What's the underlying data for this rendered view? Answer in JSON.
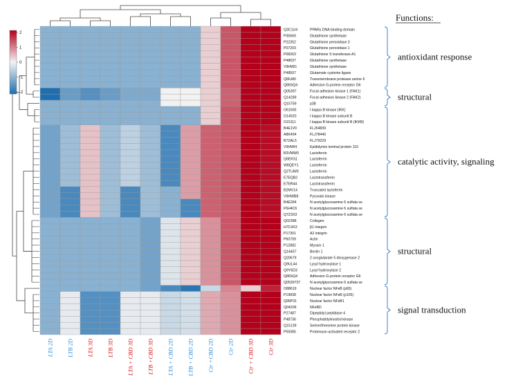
{
  "chart_data": {
    "type": "heatmap",
    "functions_title": "Functions:",
    "color_scale": {
      "min": -2,
      "max": 2,
      "ticks": [
        "2",
        "1",
        "0",
        "-1",
        "-2"
      ],
      "low_color": "#1f6fb0",
      "mid_color": "#f2f2f2",
      "high_color": "#b3001b"
    },
    "columns": [
      {
        "label": "LTA 2D",
        "color": "#2f8fd8"
      },
      {
        "label": "LTB 2D",
        "color": "#2f8fd8"
      },
      {
        "label": "LTA 3D",
        "color": "#d8161d"
      },
      {
        "label": "LTB 3D",
        "color": "#d8161d"
      },
      {
        "label": "LTA + CBD 3D",
        "color": "#d8161d"
      },
      {
        "label": "LTB +CBD 3D",
        "color": "#d8161d"
      },
      {
        "label": "LTA + CBD 2D",
        "color": "#2f8fd8"
      },
      {
        "label": "LTB + CBD 2D",
        "color": "#2f8fd8"
      },
      {
        "label": "Ctr +CBD 2D",
        "color": "#2f8fd8"
      },
      {
        "label": "Ctr 2D",
        "color": "#2f8fd8"
      },
      {
        "label": "Ctr + CBD 3D",
        "color": "#d8161d"
      },
      {
        "label": "Ctr 3D",
        "color": "#d8161d"
      }
    ],
    "rows": [
      {
        "id": "Q3C1U4",
        "name": "PPARγ DNA binding  domain",
        "values": [
          -1.0,
          -1.0,
          -1.0,
          -1.0,
          -1.0,
          -1.0,
          -1.0,
          -1.0,
          0.3,
          1.3,
          2.0,
          2.0
        ]
      },
      {
        "id": "P35669",
        "name": "Glutathione synthetase",
        "values": [
          -1.0,
          -1.0,
          -1.0,
          -1.0,
          -1.0,
          -1.0,
          -1.0,
          -1.0,
          0.3,
          1.3,
          2.0,
          2.0
        ]
      },
      {
        "id": "P22352",
        "name": "Glutathione peroxidase  3",
        "values": [
          -1.0,
          -1.0,
          -1.0,
          -1.0,
          -1.0,
          -1.0,
          -1.0,
          -1.0,
          0.3,
          1.3,
          2.0,
          2.0
        ]
      },
      {
        "id": "P07203",
        "name": "Glutathione peroxidase  1",
        "values": [
          -1.0,
          -1.0,
          -1.0,
          -1.0,
          -1.0,
          -1.0,
          -1.0,
          -1.0,
          0.3,
          1.3,
          2.0,
          2.0
        ]
      },
      {
        "id": "P08263",
        "name": "Glutathione S transferase  A1",
        "values": [
          -1.0,
          -1.0,
          -1.0,
          -1.0,
          -1.0,
          -1.0,
          -1.0,
          -1.0,
          0.3,
          1.3,
          2.0,
          2.0
        ]
      },
      {
        "id": "P48637",
        "name": "Glutathione synthetase",
        "values": [
          -1.0,
          -1.0,
          -1.0,
          -1.0,
          -1.0,
          -1.0,
          -1.0,
          -1.0,
          0.3,
          1.3,
          2.0,
          2.0
        ]
      },
      {
        "id": "V9HWI1",
        "name": "Glutathione synthetase",
        "values": [
          -1.0,
          -1.0,
          -1.0,
          -1.0,
          -1.0,
          -1.0,
          -1.0,
          -1.0,
          0.3,
          1.3,
          2.0,
          2.0
        ]
      },
      {
        "id": "P48507",
        "name": "Glutamate cysteine  ligase",
        "values": [
          -1.0,
          -1.0,
          -1.0,
          -1.0,
          -1.0,
          -1.0,
          -1.0,
          -1.0,
          0.3,
          1.3,
          2.0,
          2.0
        ]
      },
      {
        "id": "Q8IU80",
        "name": "Transmembrane  protease serine 6",
        "values": [
          -1.0,
          -1.0,
          -1.0,
          -1.0,
          -1.0,
          -1.0,
          -1.0,
          -1.0,
          0.3,
          1.3,
          2.0,
          2.0
        ]
      },
      {
        "id": "Q86SQ4",
        "name": "Adhesion  G-protein receptor  G6",
        "values": [
          -1.0,
          -1.0,
          -1.0,
          -1.0,
          -1.0,
          -1.0,
          -1.0,
          -1.0,
          0.3,
          1.3,
          2.0,
          2.0
        ]
      },
      {
        "id": "Q05397",
        "name": "Focal adhesion kinase  1 (FAK1)",
        "values": [
          -2.0,
          -1.3,
          -1.5,
          -1.3,
          -1.1,
          -1.1,
          0.0,
          0.0,
          0.3,
          1.2,
          2.0,
          2.0
        ]
      },
      {
        "id": "Q14289",
        "name": "Focal adhesion kinase 2 (FAK2)",
        "values": [
          -2.0,
          -1.3,
          -1.5,
          -1.3,
          -1.1,
          -1.1,
          0.0,
          0.0,
          0.3,
          1.2,
          2.0,
          2.0
        ]
      },
      {
        "id": "Q15759",
        "name": "p38",
        "values": [
          -1.0,
          -1.0,
          -1.0,
          -1.0,
          -1.0,
          -1.0,
          0.0,
          0.0,
          0.3,
          1.2,
          2.0,
          2.0
        ]
      },
      {
        "id": "O61565",
        "name": "I kappa B  kinase  (IKK)",
        "values": [
          -1.0,
          -1.0,
          -1.0,
          -1.0,
          -1.0,
          -1.0,
          -1.0,
          -1.0,
          0.3,
          1.3,
          2.0,
          2.0
        ]
      },
      {
        "id": "O14920",
        "name": "I kappa B  kinase  subunit  B",
        "values": [
          -1.0,
          -1.0,
          -1.0,
          -1.0,
          -1.0,
          -1.0,
          -1.0,
          -1.0,
          0.3,
          1.3,
          2.0,
          2.0
        ]
      },
      {
        "id": "O15111",
        "name": "I kappa B  kinase  subunit  B (IKKB)",
        "values": [
          -1.0,
          -1.0,
          -1.0,
          -1.0,
          -1.0,
          -1.0,
          -1.0,
          -1.0,
          0.3,
          1.3,
          2.0,
          2.0
        ]
      },
      {
        "id": "B4E1V0",
        "name": "FLJ54839",
        "values": [
          -1.2,
          -0.8,
          0.4,
          -0.8,
          -0.5,
          -0.8,
          -1.6,
          0.7,
          1.2,
          1.3,
          2.2,
          1.9
        ]
      },
      {
        "id": "A8K494",
        "name": "FLJ78440",
        "values": [
          -1.2,
          -0.8,
          0.4,
          -0.8,
          -0.5,
          -0.8,
          -1.6,
          0.7,
          1.2,
          1.3,
          2.2,
          1.9
        ]
      },
      {
        "id": "B7ZAL5",
        "name": "FLJ79229",
        "values": [
          -1.2,
          -0.8,
          0.4,
          -0.8,
          -0.5,
          -0.8,
          -1.6,
          0.7,
          1.2,
          1.3,
          2.2,
          1.9
        ]
      },
      {
        "id": "V9HWI4",
        "name": "Epididymis  luminal protein 110",
        "values": [
          -1.2,
          -0.8,
          0.4,
          -0.8,
          -0.5,
          -0.8,
          -1.6,
          0.7,
          1.2,
          1.3,
          2.2,
          1.9
        ]
      },
      {
        "id": "B3VMW0",
        "name": "Lactoferrin",
        "values": [
          -1.2,
          -0.8,
          0.4,
          -0.8,
          -0.5,
          -0.8,
          -1.6,
          0.7,
          1.2,
          1.3,
          2.2,
          1.9
        ]
      },
      {
        "id": "Q6EKS1",
        "name": "Lactoferrin",
        "values": [
          -1.2,
          -0.8,
          0.4,
          -0.8,
          -0.5,
          -0.8,
          -1.6,
          0.7,
          1.2,
          1.3,
          2.2,
          1.9
        ]
      },
      {
        "id": "W8QEY1",
        "name": "Lactoferrin",
        "values": [
          -1.2,
          -0.8,
          0.4,
          -0.8,
          -0.5,
          -0.8,
          -1.6,
          0.7,
          1.2,
          1.3,
          2.2,
          1.9
        ]
      },
      {
        "id": "Q2TUW9",
        "name": "Lactoferrin",
        "values": [
          -1.2,
          -0.8,
          0.4,
          -0.8,
          -0.5,
          -0.8,
          -1.6,
          0.7,
          1.2,
          1.3,
          2.2,
          1.9
        ]
      },
      {
        "id": "E7EQB2",
        "name": "Lactotransferrin",
        "values": [
          -1.2,
          -0.8,
          0.4,
          -0.8,
          -0.5,
          -0.8,
          -1.6,
          0.7,
          1.2,
          1.3,
          2.2,
          1.9
        ]
      },
      {
        "id": "E7ER44",
        "name": "Lactotransferrin",
        "values": [
          -1.2,
          -0.8,
          0.4,
          -0.8,
          -0.5,
          -0.8,
          -1.6,
          0.7,
          1.2,
          1.3,
          2.2,
          1.9
        ]
      },
      {
        "id": "B2MV14",
        "name": "Truncated  lactoferrin",
        "values": [
          -1.2,
          -1.6,
          0.4,
          -0.8,
          -1.6,
          -0.8,
          -1.0,
          0.7,
          1.2,
          1.3,
          2.2,
          1.9
        ]
      },
      {
        "id": "V9HWB8",
        "name": "Pyruvate kinase",
        "values": [
          -1.2,
          -1.6,
          0.4,
          -0.8,
          -1.6,
          -0.8,
          -1.0,
          0.7,
          1.2,
          1.3,
          2.2,
          1.9
        ]
      },
      {
        "id": "B4E284",
        "name": "N acetylglucosamine 6 sulfata se",
        "values": [
          -1.2,
          -1.6,
          0.4,
          -0.8,
          -1.6,
          -0.8,
          -1.0,
          -1.6,
          1.2,
          1.3,
          2.2,
          1.9
        ]
      },
      {
        "id": "F5H4C6",
        "name": "N acetylglucosamine 6 sulfata se",
        "values": [
          -1.2,
          -1.6,
          0.4,
          -0.8,
          -1.6,
          -0.8,
          -1.0,
          -1.6,
          1.2,
          1.3,
          2.2,
          1.9
        ]
      },
      {
        "id": "Q7Z3X3",
        "name": "N acetylglucosamine 6 sulfata se",
        "values": [
          -1.2,
          -1.6,
          0.4,
          -0.8,
          -1.6,
          -0.8,
          -1.0,
          -1.6,
          1.2,
          1.3,
          2.2,
          1.9
        ]
      },
      {
        "id": "Q02388",
        "name": "Collagen",
        "values": [
          -1.0,
          -1.0,
          -1.0,
          -1.0,
          -1.0,
          -1.2,
          -0.2,
          0.3,
          0.8,
          1.3,
          2.6,
          2.0
        ]
      },
      {
        "id": "H7C4X3",
        "name": "β1 integrin",
        "values": [
          -1.0,
          -1.0,
          -1.0,
          -1.0,
          -1.0,
          -1.2,
          -0.2,
          0.3,
          0.8,
          1.3,
          2.6,
          2.0
        ]
      },
      {
        "id": "P17301",
        "name": "A2 integrin",
        "values": [
          -1.0,
          -1.0,
          -1.0,
          -1.0,
          -1.0,
          -1.2,
          -0.2,
          0.3,
          0.8,
          1.3,
          2.6,
          2.0
        ]
      },
      {
        "id": "P60709",
        "name": "Actin",
        "values": [
          -1.0,
          -1.0,
          -1.0,
          -1.0,
          -1.0,
          -1.2,
          -0.2,
          0.3,
          0.8,
          1.3,
          2.6,
          2.0
        ]
      },
      {
        "id": "P12882",
        "name": "Myosin 1",
        "values": [
          -1.0,
          -1.0,
          -1.0,
          -1.0,
          -1.0,
          -1.2,
          -0.2,
          0.3,
          0.8,
          1.3,
          2.6,
          2.0
        ]
      },
      {
        "id": "Q14457",
        "name": "Beclin 1",
        "values": [
          -1.0,
          -1.0,
          -1.0,
          -1.0,
          -1.0,
          -1.2,
          -0.2,
          0.3,
          0.8,
          1.3,
          2.6,
          2.0
        ]
      },
      {
        "id": "Q20679",
        "name": "2 oxoglutarate  5 dioxygenase  2",
        "values": [
          -1.0,
          -1.0,
          -1.0,
          -1.0,
          -1.0,
          -1.2,
          -0.2,
          0.3,
          0.8,
          1.3,
          2.6,
          2.0
        ]
      },
      {
        "id": "Q9UL44",
        "name": "Lysyl hydroxylase  1",
        "values": [
          -1.0,
          -1.0,
          -1.0,
          -1.0,
          -1.0,
          -1.2,
          -0.2,
          0.3,
          0.8,
          1.3,
          2.6,
          2.0
        ]
      },
      {
        "id": "Q9Y6D3",
        "name": "Lysyl hydroxylase  2",
        "values": [
          -1.0,
          -1.0,
          -1.0,
          -1.0,
          -1.0,
          -1.2,
          -0.2,
          0.3,
          0.8,
          1.3,
          2.6,
          2.0
        ]
      },
      {
        "id": "Q86SQ4",
        "name": "Adhesion  G-protein receptor  G6",
        "values": [
          -1.0,
          -1.0,
          -1.0,
          -1.0,
          -1.0,
          -1.2,
          -0.2,
          0.3,
          0.8,
          1.3,
          2.6,
          2.0
        ]
      },
      {
        "id": "Q0539737",
        "name": "N acetylglucosamine 6 sulfata se",
        "values": [
          -1.0,
          -1.0,
          -1.0,
          -1.0,
          -1.0,
          -1.2,
          -0.2,
          0.3,
          0.8,
          1.3,
          2.6,
          2.0
        ]
      },
      {
        "id": "O88619",
        "name": "Nuclear factor  NFκB (p65)",
        "values": [
          -1.0,
          -1.0,
          -1.0,
          -1.0,
          -1.0,
          -1.2,
          -1.6,
          -1.9,
          -0.4,
          0.9,
          0.3,
          1.7
        ]
      },
      {
        "id": "P19838",
        "name": "Nuclear factor  NFκB (p105)",
        "values": [
          -1.0,
          -0.1,
          -1.5,
          -1.5,
          -0.1,
          -0.1,
          -0.4,
          -0.3,
          0.6,
          0.8,
          2.2,
          2.0
        ]
      },
      {
        "id": "Q96P31",
        "name": "Nuclear factor  NFκB1",
        "values": [
          -1.0,
          -0.1,
          -1.5,
          -1.5,
          -0.1,
          -0.1,
          -0.4,
          -0.3,
          0.6,
          0.8,
          2.2,
          2.0
        ]
      },
      {
        "id": "Q04206",
        "name": "NFκBD",
        "values": [
          -1.0,
          -0.1,
          -1.5,
          -1.5,
          -0.1,
          -0.1,
          -0.4,
          -0.3,
          0.6,
          0.8,
          2.2,
          2.0
        ]
      },
      {
        "id": "P27487",
        "name": "Dipeptidyl peptidase  4",
        "values": [
          -1.0,
          -0.1,
          -1.5,
          -1.5,
          -0.1,
          -0.1,
          -0.4,
          -0.3,
          0.6,
          0.8,
          2.2,
          2.0
        ]
      },
      {
        "id": "P48736",
        "name": "Phosphatidylinositol  kinase",
        "values": [
          -1.0,
          -0.1,
          -1.5,
          -1.5,
          -0.1,
          -0.1,
          -0.4,
          -0.3,
          0.6,
          0.8,
          2.2,
          2.0
        ]
      },
      {
        "id": "Q15139",
        "name": "Serine/threonine protein  kinase",
        "values": [
          -1.0,
          -0.1,
          -1.5,
          -1.5,
          -0.1,
          -0.1,
          -0.4,
          -0.3,
          0.6,
          0.8,
          2.2,
          2.0
        ]
      },
      {
        "id": "P55085",
        "name": "Proteinase-activated  receptor  2",
        "values": [
          -1.0,
          -0.1,
          -1.5,
          -1.5,
          -0.1,
          -0.1,
          -0.4,
          -0.3,
          0.6,
          0.8,
          2.2,
          2.0
        ]
      }
    ],
    "groups": [
      {
        "label": "antioxidant response",
        "first_row": 0,
        "last_row": 9
      },
      {
        "label": "structural",
        "first_row": 10,
        "last_row": 12
      },
      {
        "label": "catalytic activity, signaling",
        "first_row": 13,
        "last_row": 30
      },
      {
        "label": "structural",
        "first_row": 31,
        "last_row": 41
      },
      {
        "label": "signal transduction",
        "first_row": 42,
        "last_row": 49
      }
    ],
    "column_tree": [
      [
        0,
        1
      ],
      [
        2,
        3
      ],
      [
        12,
        13
      ],
      [
        4,
        5
      ],
      [
        6,
        7
      ],
      [
        15,
        16
      ],
      [
        14,
        17
      ],
      [
        8,
        9
      ],
      [
        10,
        11
      ],
      [
        19,
        20
      ],
      [
        18,
        21
      ]
    ],
    "row_tree": [
      [
        0,
        9
      ],
      [
        10,
        11
      ],
      [
        12,
        12
      ],
      [
        13,
        15
      ],
      [
        16,
        30
      ],
      [
        31,
        41
      ],
      [
        42,
        42
      ],
      [
        43,
        49
      ]
    ]
  }
}
